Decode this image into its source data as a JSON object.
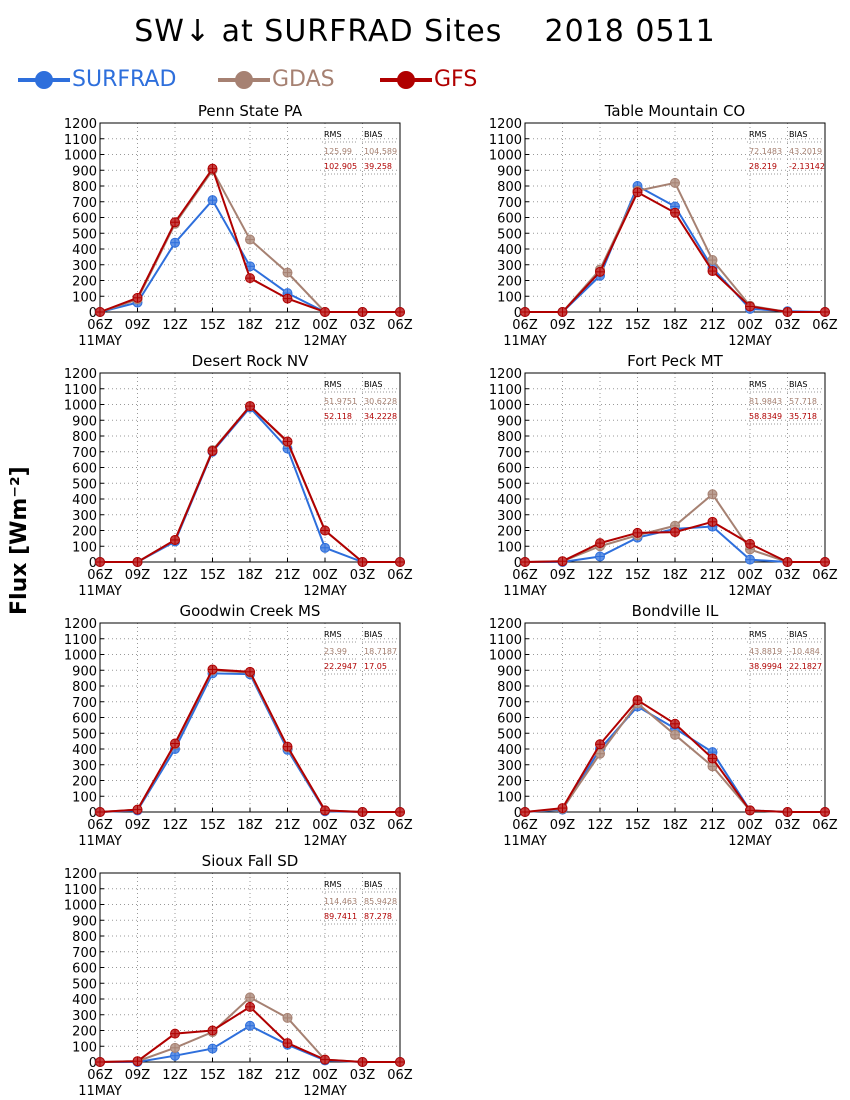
{
  "title": "SW↓ at SURFRAD Sites    2018 0511",
  "ylabel": "Flux [Wm⁻²]",
  "colors": {
    "SURFRAD": "#2e6fdc",
    "GDAS": "#a68172",
    "GFS": "#b00000"
  },
  "legend": [
    {
      "label": "SURFRAD",
      "key": "SURFRAD"
    },
    {
      "label": "GDAS",
      "key": "GDAS"
    },
    {
      "label": "GFS",
      "key": "GFS"
    }
  ],
  "chart_data": [
    {
      "type": "line",
      "title": "Penn State PA",
      "x": [
        "06Z",
        "09Z",
        "12Z",
        "15Z",
        "18Z",
        "21Z",
        "00Z",
        "03Z",
        "06Z"
      ],
      "date_labels": [
        "11MAY",
        "12MAY"
      ],
      "ylim": [
        0,
        1200
      ],
      "yticks": [
        0,
        100,
        200,
        300,
        400,
        500,
        600,
        700,
        800,
        900,
        1000,
        1100,
        1200
      ],
      "grid": true,
      "stats_headers": [
        "RMS",
        "BIAS"
      ],
      "stats": [
        {
          "series": "GDAS",
          "rms": "125.99",
          "bias": "104.589"
        },
        {
          "series": "GFS",
          "rms": "102.905",
          "bias": "39.258"
        }
      ],
      "series": [
        {
          "name": "SURFRAD",
          "values": [
            0,
            60,
            440,
            710,
            290,
            120,
            0,
            0,
            0
          ]
        },
        {
          "name": "GDAS",
          "values": [
            0,
            80,
            560,
            900,
            460,
            250,
            0,
            0,
            0
          ]
        },
        {
          "name": "GFS",
          "values": [
            0,
            90,
            570,
            910,
            215,
            85,
            0,
            0,
            0
          ]
        }
      ]
    },
    {
      "type": "line",
      "title": "Table Mountain CO",
      "x": [
        "06Z",
        "09Z",
        "12Z",
        "15Z",
        "18Z",
        "21Z",
        "00Z",
        "03Z",
        "06Z"
      ],
      "date_labels": [
        "11MAY",
        "12MAY"
      ],
      "ylim": [
        0,
        1200
      ],
      "yticks": [
        0,
        100,
        200,
        300,
        400,
        500,
        600,
        700,
        800,
        900,
        1000,
        1100,
        1200
      ],
      "grid": true,
      "stats_headers": [
        "RMS",
        "BIAS"
      ],
      "stats": [
        {
          "series": "GDAS",
          "rms": "72.1483",
          "bias": "43.2019"
        },
        {
          "series": "GFS",
          "rms": "28.219",
          "bias": "-2.13142"
        }
      ],
      "series": [
        {
          "name": "SURFRAD",
          "values": [
            0,
            0,
            230,
            800,
            670,
            280,
            20,
            5,
            0
          ]
        },
        {
          "name": "GDAS",
          "values": [
            0,
            0,
            270,
            770,
            820,
            330,
            40,
            0,
            0
          ]
        },
        {
          "name": "GFS",
          "values": [
            0,
            0,
            255,
            760,
            630,
            260,
            35,
            0,
            0
          ]
        }
      ]
    },
    {
      "type": "line",
      "title": "Desert Rock NV",
      "x": [
        "06Z",
        "09Z",
        "12Z",
        "15Z",
        "18Z",
        "21Z",
        "00Z",
        "03Z",
        "06Z"
      ],
      "date_labels": [
        "11MAY",
        "12MAY"
      ],
      "ylim": [
        0,
        1200
      ],
      "yticks": [
        0,
        100,
        200,
        300,
        400,
        500,
        600,
        700,
        800,
        900,
        1000,
        1100,
        1200
      ],
      "grid": true,
      "stats_headers": [
        "RMS",
        "BIAS"
      ],
      "stats": [
        {
          "series": "GDAS",
          "rms": "51.9751",
          "bias": "30.6228"
        },
        {
          "series": "GFS",
          "rms": "52.118",
          "bias": "34.2228"
        }
      ],
      "series": [
        {
          "name": "SURFRAD",
          "values": [
            0,
            0,
            130,
            700,
            980,
            720,
            90,
            0,
            0
          ]
        },
        {
          "name": "GDAS",
          "values": [
            0,
            0,
            140,
            710,
            990,
            760,
            200,
            0,
            0
          ]
        },
        {
          "name": "GFS",
          "values": [
            0,
            0,
            140,
            705,
            990,
            765,
            200,
            0,
            0
          ]
        }
      ]
    },
    {
      "type": "line",
      "title": "Fort Peck MT",
      "x": [
        "06Z",
        "09Z",
        "12Z",
        "15Z",
        "18Z",
        "21Z",
        "00Z",
        "03Z",
        "06Z"
      ],
      "date_labels": [
        "11MAY",
        "12MAY"
      ],
      "ylim": [
        0,
        1200
      ],
      "yticks": [
        0,
        100,
        200,
        300,
        400,
        500,
        600,
        700,
        800,
        900,
        1000,
        1100,
        1200
      ],
      "grid": true,
      "stats_headers": [
        "RMS",
        "BIAS"
      ],
      "stats": [
        {
          "series": "GDAS",
          "rms": "81.9843",
          "bias": "57.718"
        },
        {
          "series": "GFS",
          "rms": "58.8349",
          "bias": "35.718"
        }
      ],
      "series": [
        {
          "name": "SURFRAD",
          "values": [
            0,
            0,
            35,
            155,
            210,
            225,
            15,
            0,
            0
          ]
        },
        {
          "name": "GDAS",
          "values": [
            0,
            5,
            100,
            170,
            230,
            430,
            80,
            0,
            0
          ]
        },
        {
          "name": "GFS",
          "values": [
            0,
            5,
            120,
            185,
            190,
            255,
            115,
            0,
            0
          ]
        }
      ]
    },
    {
      "type": "line",
      "title": "Goodwin Creek MS",
      "x": [
        "06Z",
        "09Z",
        "12Z",
        "15Z",
        "18Z",
        "21Z",
        "00Z",
        "03Z",
        "06Z"
      ],
      "date_labels": [
        "11MAY",
        "12MAY"
      ],
      "ylim": [
        0,
        1200
      ],
      "yticks": [
        0,
        100,
        200,
        300,
        400,
        500,
        600,
        700,
        800,
        900,
        1000,
        1100,
        1200
      ],
      "grid": true,
      "stats_headers": [
        "RMS",
        "BIAS"
      ],
      "stats": [
        {
          "series": "GDAS",
          "rms": "23.99",
          "bias": "18.7187"
        },
        {
          "series": "GFS",
          "rms": "22.2947",
          "bias": "17.05"
        }
      ],
      "series": [
        {
          "name": "SURFRAD",
          "values": [
            0,
            10,
            400,
            880,
            875,
            395,
            5,
            0,
            0
          ]
        },
        {
          "name": "GDAS",
          "values": [
            0,
            15,
            430,
            900,
            885,
            410,
            10,
            0,
            0
          ]
        },
        {
          "name": "GFS",
          "values": [
            0,
            15,
            435,
            905,
            890,
            415,
            10,
            0,
            0
          ]
        }
      ]
    },
    {
      "type": "line",
      "title": "Bondville IL",
      "x": [
        "06Z",
        "09Z",
        "12Z",
        "15Z",
        "18Z",
        "21Z",
        "00Z",
        "03Z",
        "06Z"
      ],
      "date_labels": [
        "11MAY",
        "12MAY"
      ],
      "ylim": [
        0,
        1200
      ],
      "yticks": [
        0,
        100,
        200,
        300,
        400,
        500,
        600,
        700,
        800,
        900,
        1000,
        1100,
        1200
      ],
      "grid": true,
      "stats_headers": [
        "RMS",
        "BIAS"
      ],
      "stats": [
        {
          "series": "GDAS",
          "rms": "43.8819",
          "bias": "-10.484"
        },
        {
          "series": "GFS",
          "rms": "38.9994",
          "bias": "22.1827"
        }
      ],
      "series": [
        {
          "name": "SURFRAD",
          "values": [
            0,
            15,
            400,
            670,
            530,
            380,
            10,
            0,
            0
          ]
        },
        {
          "name": "GDAS",
          "values": [
            0,
            20,
            370,
            690,
            490,
            290,
            10,
            0,
            0
          ]
        },
        {
          "name": "GFS",
          "values": [
            0,
            25,
            430,
            710,
            560,
            340,
            10,
            0,
            0
          ]
        }
      ]
    },
    {
      "type": "line",
      "title": "Sioux Fall SD",
      "x": [
        "06Z",
        "09Z",
        "12Z",
        "15Z",
        "18Z",
        "21Z",
        "00Z",
        "03Z",
        "06Z"
      ],
      "date_labels": [
        "11MAY",
        "12MAY"
      ],
      "ylim": [
        0,
        1200
      ],
      "yticks": [
        0,
        100,
        200,
        300,
        400,
        500,
        600,
        700,
        800,
        900,
        1000,
        1100,
        1200
      ],
      "grid": true,
      "stats_headers": [
        "RMS",
        "BIAS"
      ],
      "stats": [
        {
          "series": "GDAS",
          "rms": "114.463",
          "bias": "85.9428"
        },
        {
          "series": "GFS",
          "rms": "89.7411",
          "bias": "87.278"
        }
      ],
      "series": [
        {
          "name": "SURFRAD",
          "values": [
            0,
            0,
            40,
            85,
            230,
            110,
            10,
            0,
            0
          ]
        },
        {
          "name": "GDAS",
          "values": [
            0,
            5,
            90,
            190,
            410,
            280,
            15,
            0,
            0
          ]
        },
        {
          "name": "GFS",
          "values": [
            0,
            5,
            180,
            200,
            350,
            120,
            15,
            0,
            0
          ]
        }
      ]
    }
  ]
}
